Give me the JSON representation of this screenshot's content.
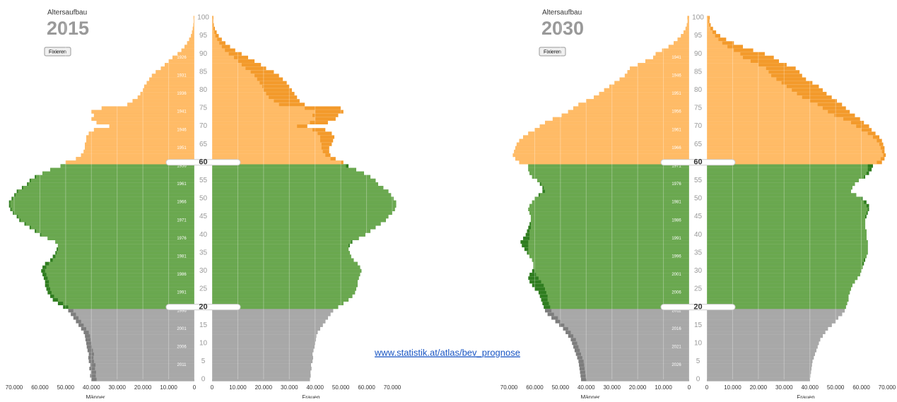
{
  "link": "www.statistik.at/atlas/bev_prognose",
  "chart_data": [
    {
      "type": "pyramid",
      "title": "Altersaufbau",
      "subtitle": "2015",
      "button": "Fixieren",
      "ylim": [
        0,
        100
      ],
      "yticks": [
        0,
        5,
        10,
        15,
        20,
        25,
        30,
        35,
        40,
        45,
        50,
        55,
        60,
        65,
        70,
        75,
        80,
        85,
        90,
        95,
        100
      ],
      "xlim": [
        0,
        70000
      ],
      "xticks": [
        {
          "value": 70000,
          "label": "70.000"
        },
        {
          "value": 60000,
          "label": "60.000"
        },
        {
          "value": 50000,
          "label": "50.000"
        },
        {
          "value": 40000,
          "label": "40.000"
        },
        {
          "value": 30000,
          "label": "30.000"
        },
        {
          "value": 20000,
          "label": "20.000"
        },
        {
          "value": 10000,
          "label": "10.000"
        },
        0
      ],
      "grid": true,
      "thresholds": [
        20,
        60
      ],
      "group_colors": [
        {
          "light": "#a8a8a8",
          "dark": "#7d7d7d"
        },
        {
          "light": "#6aa84f",
          "dark": "#2f7d1f"
        },
        {
          "light": "#ffbb66",
          "dark": "#f39a2b"
        }
      ],
      "birth_years": [
        "2011",
        "2006",
        "2001",
        "1996",
        "1991",
        "1986",
        "1981",
        "1976",
        "1971",
        "1966",
        "1961",
        "1956",
        "1951",
        "1946",
        "1941",
        "1936",
        "1931",
        "1926"
      ],
      "series": [
        {
          "name": "Männer",
          "values": [
            40000,
            40500,
            40200,
            40800,
            40400,
            41000,
            41200,
            41000,
            41500,
            41800,
            42000,
            42300,
            42500,
            43000,
            44000,
            45000,
            46000,
            47000,
            48000,
            49000,
            51000,
            53000,
            55000,
            56000,
            57000,
            57500,
            58000,
            58000,
            58500,
            59000,
            59500,
            59000,
            58000,
            56000,
            55000,
            54000,
            53500,
            53000,
            54000,
            57000,
            60000,
            62000,
            64000,
            66000,
            68000,
            69000,
            70500,
            71500,
            72000,
            72000,
            71000,
            70000,
            69000,
            67000,
            65000,
            64000,
            62000,
            59000,
            56000,
            52000,
            50000,
            46000,
            44000,
            43000,
            42500,
            42500,
            42000,
            42000,
            41000,
            39000,
            33000,
            38000,
            40000,
            39000,
            40000,
            36000,
            26000,
            24000,
            22000,
            21000,
            20000,
            19500,
            18500,
            17500,
            16500,
            15000,
            13000,
            11500,
            10000,
            8500,
            6500,
            5000,
            3800,
            2800,
            2000,
            1300,
            900,
            600,
            400,
            250,
            300
          ]
        },
        {
          "name": "Frauen",
          "values": [
            38000,
            38300,
            38200,
            38600,
            38400,
            39000,
            39200,
            39000,
            39400,
            39800,
            40000,
            40300,
            40500,
            41000,
            42000,
            43000,
            44000,
            45000,
            46000,
            47000,
            49000,
            51000,
            53000,
            54500,
            55500,
            56000,
            56500,
            56500,
            57000,
            57500,
            58000,
            57500,
            56500,
            55000,
            54000,
            53500,
            53000,
            53500,
            54500,
            57000,
            59500,
            61500,
            63500,
            65500,
            67500,
            68500,
            70000,
            71000,
            71500,
            71500,
            70500,
            69500,
            68500,
            66500,
            64500,
            63500,
            61500,
            59000,
            56000,
            53000,
            51000,
            48000,
            46000,
            45500,
            45500,
            46500,
            47000,
            47500,
            46500,
            44000,
            37000,
            45000,
            48000,
            49000,
            51000,
            50000,
            36000,
            34000,
            33000,
            32000,
            31000,
            30000,
            29000,
            27500,
            26000,
            24000,
            21000,
            19000,
            16500,
            14000,
            11500,
            9000,
            7000,
            5200,
            3800,
            2600,
            1800,
            1100,
            700,
            450,
            500
          ]
        }
      ]
    },
    {
      "type": "pyramid",
      "title": "Altersaufbau",
      "subtitle": "2030",
      "button": "Fixieren",
      "ylim": [
        0,
        100
      ],
      "yticks": [
        0,
        5,
        10,
        15,
        20,
        25,
        30,
        35,
        40,
        45,
        50,
        55,
        60,
        65,
        70,
        75,
        80,
        85,
        90,
        95,
        100
      ],
      "xlim": [
        0,
        70000
      ],
      "xticks": [
        {
          "value": 70000,
          "label": "70.000"
        },
        {
          "value": 60000,
          "label": "60.000"
        },
        {
          "value": 50000,
          "label": "50.000"
        },
        {
          "value": 40000,
          "label": "40.000"
        },
        {
          "value": 30000,
          "label": "30.000"
        },
        {
          "value": 20000,
          "label": "20.000"
        },
        {
          "value": 10000,
          "label": "10.000"
        },
        0
      ],
      "grid": true,
      "thresholds": [
        20,
        60
      ],
      "group_colors": [
        {
          "light": "#a8a8a8",
          "dark": "#7d7d7d"
        },
        {
          "light": "#6aa84f",
          "dark": "#2f7d1f"
        },
        {
          "light": "#ffbb66",
          "dark": "#f39a2b"
        }
      ],
      "birth_years": [
        "2026",
        "2021",
        "2016",
        "2011",
        "2006",
        "2001",
        "1996",
        "1991",
        "1986",
        "1981",
        "1976",
        "1971",
        "1966",
        "1961",
        "1956",
        "1951",
        "1946",
        "1941"
      ],
      "series": [
        {
          "name": "Männer",
          "values": [
            42000,
            42200,
            42400,
            42600,
            42800,
            43000,
            43500,
            44000,
            44500,
            45000,
            45500,
            46000,
            47000,
            48000,
            49000,
            50500,
            52000,
            53500,
            55000,
            56000,
            56500,
            57000,
            57500,
            58000,
            58500,
            60000,
            61000,
            62000,
            62500,
            62000,
            61000,
            60500,
            60500,
            61000,
            62000,
            63000,
            64000,
            65000,
            65500,
            64500,
            63500,
            63000,
            62500,
            62000,
            61500,
            61500,
            62000,
            62500,
            62000,
            61000,
            60000,
            58500,
            57000,
            57000,
            58000,
            59000,
            61000,
            62000,
            62500,
            62500,
            66000,
            67500,
            68500,
            68000,
            67500,
            67000,
            66000,
            64500,
            62500,
            60000,
            58000,
            56000,
            53000,
            49500,
            47000,
            45000,
            43000,
            40000,
            37000,
            35000,
            33000,
            31000,
            29000,
            27000,
            25000,
            24000,
            23000,
            20000,
            17000,
            14000,
            13000,
            10500,
            8000,
            6000,
            4500,
            3200,
            2200,
            1400,
            900,
            600,
            700
          ]
        },
        {
          "name": "Frauen",
          "values": [
            40000,
            40200,
            40400,
            40600,
            40800,
            41000,
            41500,
            42000,
            42500,
            43000,
            43500,
            44000,
            45000,
            46000,
            47000,
            48500,
            50000,
            51000,
            52500,
            53500,
            54000,
            54500,
            55000,
            55000,
            55500,
            56000,
            56500,
            57500,
            58500,
            59500,
            60000,
            60500,
            61000,
            61500,
            62000,
            62500,
            62500,
            62500,
            62500,
            62000,
            62000,
            62000,
            61500,
            61500,
            61500,
            62000,
            62500,
            63000,
            63000,
            62000,
            60500,
            58000,
            56000,
            56500,
            57500,
            59000,
            61500,
            63000,
            64000,
            64500,
            68000,
            69000,
            69500,
            69000,
            69000,
            68500,
            68000,
            67000,
            65500,
            64000,
            63000,
            61000,
            59500,
            57500,
            55500,
            54000,
            52500,
            50500,
            48500,
            46500,
            45000,
            43500,
            41000,
            38500,
            37000,
            36000,
            34500,
            31000,
            28000,
            26000,
            22500,
            18000,
            14000,
            10500,
            7500,
            5200,
            3600,
            2400,
            1500,
            1000,
            1100
          ]
        }
      ]
    }
  ]
}
